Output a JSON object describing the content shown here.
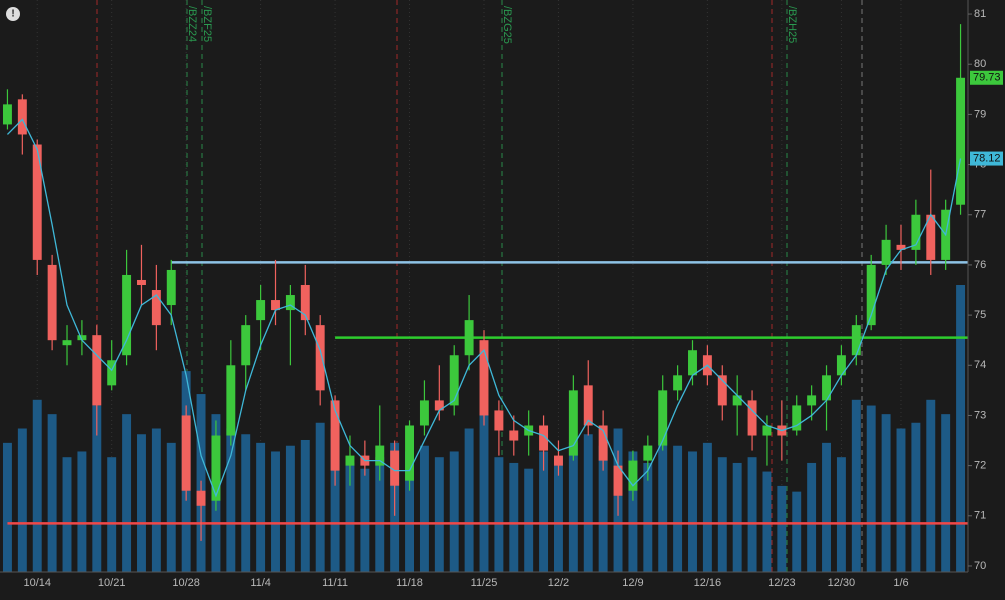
{
  "chart_data": {
    "type": "candlestick",
    "categories": [
      null,
      null,
      "10/14",
      null,
      null,
      null,
      null,
      "10/21",
      null,
      null,
      null,
      null,
      "10/28",
      null,
      null,
      null,
      null,
      "11/4",
      null,
      null,
      null,
      null,
      "11/11",
      null,
      null,
      null,
      null,
      "11/18",
      null,
      null,
      null,
      null,
      "11/25",
      null,
      null,
      null,
      null,
      "12/2",
      null,
      null,
      null,
      null,
      "12/9",
      null,
      null,
      null,
      null,
      "12/16",
      null,
      null,
      null,
      null,
      "12/23",
      null,
      null,
      null,
      "12/30",
      null,
      null,
      null,
      "1/6",
      null,
      null,
      null,
      null
    ],
    "open": [
      78.8,
      79.3,
      78.4,
      76.0,
      74.4,
      74.5,
      74.6,
      73.6,
      74.2,
      75.7,
      75.5,
      75.2,
      73.0,
      71.5,
      71.3,
      72.6,
      74.0,
      74.9,
      75.3,
      75.1,
      75.6,
      74.8,
      73.3,
      72.0,
      72.2,
      72.0,
      72.3,
      71.7,
      72.8,
      73.3,
      73.2,
      74.2,
      74.5,
      73.1,
      72.7,
      72.6,
      72.8,
      72.2,
      72.2,
      73.6,
      72.8,
      72.0,
      71.5,
      72.1,
      72.4,
      73.5,
      73.8,
      74.2,
      73.8,
      73.2,
      73.3,
      72.6,
      72.8,
      72.7,
      73.2,
      73.3,
      73.8,
      74.2,
      74.8,
      76.0,
      76.4,
      76.3,
      77.0,
      76.1,
      77.2
    ],
    "high": [
      79.5,
      79.4,
      78.5,
      76.2,
      74.8,
      74.9,
      74.8,
      74.5,
      76.3,
      76.4,
      76.0,
      76.1,
      73.2,
      71.7,
      72.9,
      74.5,
      75.0,
      75.6,
      76.1,
      75.6,
      76.0,
      75.0,
      73.4,
      72.6,
      72.5,
      73.2,
      72.5,
      72.9,
      73.7,
      74.0,
      74.4,
      75.4,
      74.7,
      73.3,
      73.0,
      73.1,
      73.0,
      72.5,
      73.8,
      74.1,
      73.1,
      72.3,
      72.3,
      72.6,
      73.8,
      74.0,
      74.5,
      74.4,
      74.0,
      73.8,
      73.5,
      73.0,
      73.3,
      73.4,
      73.6,
      74.0,
      74.4,
      75.0,
      76.2,
      76.8,
      76.8,
      77.3,
      77.9,
      77.3,
      80.8
    ],
    "low": [
      78.7,
      78.2,
      75.8,
      74.3,
      74.0,
      74.2,
      72.6,
      73.5,
      74.0,
      75.2,
      74.3,
      74.8,
      71.3,
      70.5,
      71.1,
      72.4,
      73.5,
      74.3,
      74.8,
      74.0,
      74.6,
      73.2,
      71.6,
      71.6,
      71.8,
      71.7,
      71.0,
      71.5,
      72.6,
      72.9,
      73.0,
      73.9,
      72.8,
      72.2,
      72.2,
      72.2,
      71.9,
      71.8,
      72.1,
      72.6,
      71.9,
      71.0,
      71.3,
      71.7,
      72.3,
      73.3,
      73.6,
      73.6,
      72.9,
      72.6,
      72.3,
      72.0,
      72.1,
      72.6,
      72.9,
      72.7,
      73.6,
      74.0,
      74.7,
      75.8,
      75.9,
      76.0,
      75.8,
      75.9,
      77.0
    ],
    "close": [
      79.2,
      78.6,
      76.1,
      74.5,
      74.5,
      74.6,
      73.2,
      74.1,
      75.8,
      75.6,
      74.8,
      75.9,
      71.5,
      71.2,
      72.6,
      74.0,
      74.8,
      75.3,
      75.1,
      75.4,
      74.9,
      73.5,
      71.9,
      72.2,
      72.0,
      72.4,
      71.6,
      72.8,
      73.3,
      73.1,
      74.2,
      74.9,
      73.0,
      72.7,
      72.5,
      72.8,
      72.3,
      72.0,
      73.5,
      72.8,
      72.1,
      71.4,
      72.1,
      72.4,
      73.5,
      73.8,
      74.3,
      73.8,
      73.2,
      73.4,
      72.6,
      72.8,
      72.6,
      73.2,
      73.4,
      73.8,
      74.2,
      74.8,
      76.0,
      76.5,
      76.3,
      77.0,
      76.1,
      77.1,
      79.73
    ],
    "ma": [
      78.6,
      78.9,
      78.3,
      76.8,
      75.2,
      74.5,
      74.2,
      73.9,
      74.5,
      75.2,
      75.4,
      75.0,
      73.8,
      72.2,
      71.4,
      72.2,
      73.5,
      74.4,
      75.1,
      75.2,
      75.0,
      74.3,
      73.1,
      72.4,
      72.1,
      72.1,
      71.9,
      71.9,
      72.5,
      73.1,
      73.3,
      74.0,
      74.3,
      73.4,
      72.9,
      72.7,
      72.6,
      72.3,
      72.4,
      72.9,
      72.7,
      72.0,
      71.6,
      71.9,
      72.5,
      73.2,
      73.8,
      74.0,
      73.7,
      73.4,
      73.1,
      72.8,
      72.7,
      72.8,
      73.0,
      73.3,
      73.8,
      74.2,
      75.0,
      75.9,
      76.3,
      76.4,
      77.0,
      76.6,
      78.12
    ],
    "volume": [
      45,
      50,
      60,
      55,
      40,
      42,
      58,
      40,
      55,
      48,
      50,
      45,
      70,
      62,
      55,
      50,
      48,
      45,
      42,
      44,
      46,
      52,
      50,
      38,
      36,
      40,
      45,
      42,
      44,
      40,
      42,
      50,
      55,
      40,
      38,
      36,
      42,
      40,
      45,
      48,
      44,
      50,
      42,
      38,
      46,
      44,
      42,
      45,
      40,
      38,
      40,
      35,
      30,
      28,
      38,
      45,
      40,
      60,
      58,
      55,
      50,
      52,
      60,
      55,
      100
    ],
    "vlim": [
      0,
      100
    ],
    "up_color": "#3cc83c",
    "down_color": "#f0625e",
    "ma_color": "#3fb8d8",
    "volume_color": "#1d5a86",
    "levels": [
      {
        "value": 76.05,
        "color": "#8ec3e6",
        "from": 11
      },
      {
        "value": 74.55,
        "color": "#2ecc2e",
        "from": 22
      },
      {
        "value": 70.85,
        "color": "#f04848",
        "from": 0
      }
    ],
    "ylim": [
      69.88,
      81.28
    ],
    "yticks": [
      70,
      71,
      72,
      73,
      74,
      75,
      76,
      77,
      78,
      79,
      80,
      81
    ],
    "annotations": [
      "/BZF25",
      "/BZZ24",
      "/BZG25",
      "/BZH25"
    ]
  }
}
